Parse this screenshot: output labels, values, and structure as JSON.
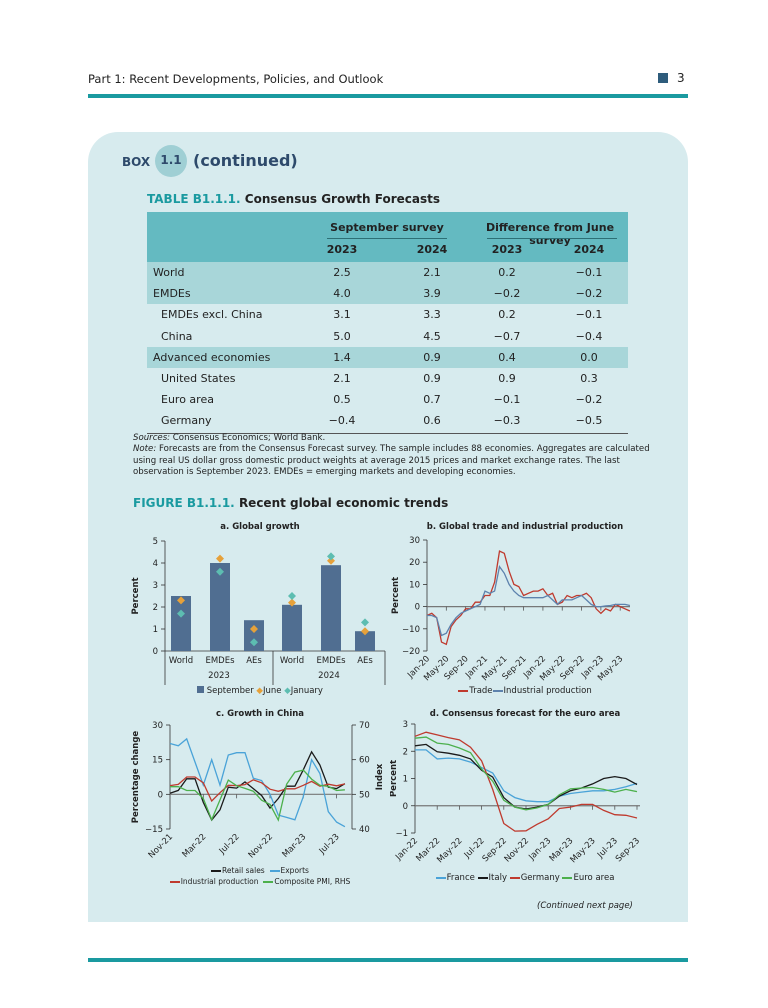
{
  "running_head": "Part 1: Recent Developments, Policies, and Outlook",
  "page_number": "3",
  "box": {
    "label": "BOX",
    "number": "1.1",
    "continued": "(continued)"
  },
  "table": {
    "id": "TABLE B1.1.1.",
    "title": "Consensus Growth Forecasts",
    "group_headers": [
      "September survey",
      "Difference from June survey"
    ],
    "years": [
      "2023",
      "2024",
      "2023",
      "2024"
    ],
    "rows": [
      {
        "label": "World",
        "values": [
          "2.5",
          "2.1",
          "0.2",
          "−0.1"
        ],
        "shaded": true,
        "indent": false
      },
      {
        "label": "EMDEs",
        "values": [
          "4.0",
          "3.9",
          "−0.2",
          "−0.2"
        ],
        "shaded": true,
        "indent": false
      },
      {
        "label": "EMDEs excl. China",
        "values": [
          "3.1",
          "3.3",
          "0.2",
          "−0.1"
        ],
        "shaded": false,
        "indent": true
      },
      {
        "label": "China",
        "values": [
          "5.0",
          "4.5",
          "−0.7",
          "−0.4"
        ],
        "shaded": false,
        "indent": true
      },
      {
        "label": "Advanced economies",
        "values": [
          "1.4",
          "0.9",
          "0.4",
          "0.0"
        ],
        "shaded": true,
        "indent": false
      },
      {
        "label": "United States",
        "values": [
          "2.1",
          "0.9",
          "0.9",
          "0.3"
        ],
        "shaded": false,
        "indent": true
      },
      {
        "label": "Euro area",
        "values": [
          "0.5",
          "0.7",
          "−0.1",
          "−0.2"
        ],
        "shaded": false,
        "indent": true
      },
      {
        "label": "Germany",
        "values": [
          "−0.4",
          "0.6",
          "−0.3",
          "−0.5"
        ],
        "shaded": false,
        "indent": true
      }
    ],
    "sources_label": "Sources:",
    "sources": " Consensus Economics; World Bank.",
    "note_label": "Note:",
    "note": " Forecasts are from the Consensus Forecast survey. The sample includes 88 economies. Aggregates are calculated using real US dollar gross domestic product weights at average 2015 prices and market exchange rates. The last observation is September 2023. EMDEs = emerging markets and developing economies."
  },
  "figure": {
    "id": "FIGURE B1.1.1.",
    "title": "Recent global economic trends"
  },
  "continued_next": "(Continued next page)",
  "colors": {
    "teal": "#1a9aa0",
    "bar": "#506e91",
    "june": "#e6a13a",
    "january": "#5dbdb1",
    "red": "#bf3a2e",
    "blue": "#5d82ad",
    "lightblue": "#4aa3d8",
    "black": "#1a1a1a",
    "green": "#4cb04c"
  },
  "chart_data": [
    {
      "type": "bar",
      "title": "a. Global growth",
      "ylabel": "Percent",
      "ylim": [
        0,
        5
      ],
      "yticks": [
        0,
        1,
        2,
        3,
        4,
        5
      ],
      "categories": [
        "World",
        "EMDEs",
        "AEs",
        "World",
        "EMDEs",
        "AEs"
      ],
      "groups": [
        "2023",
        "2024"
      ],
      "series": [
        {
          "name": "September",
          "kind": "bar",
          "values": [
            2.5,
            4.0,
            1.4,
            2.1,
            3.9,
            0.9
          ]
        },
        {
          "name": "June",
          "kind": "diamond",
          "values": [
            2.3,
            4.2,
            1.0,
            2.2,
            4.1,
            0.9
          ]
        },
        {
          "name": "January",
          "kind": "diamond",
          "values": [
            1.7,
            3.6,
            0.4,
            2.5,
            4.3,
            1.3
          ]
        }
      ],
      "legend": "bottom"
    },
    {
      "type": "line",
      "title": "b. Global trade and industrial production",
      "ylabel": "Percent",
      "ylim": [
        -20,
        30
      ],
      "yticks": [
        -20,
        -10,
        0,
        10,
        20,
        30
      ],
      "x_start": "Jan-20",
      "x_frequency": "monthly",
      "xticks": [
        "Jan-20",
        "May-20",
        "Sep-20",
        "Jan-21",
        "May-21",
        "Sep-21",
        "Jan-22",
        "May-22",
        "Sep-22",
        "Jan-23",
        "May-23"
      ],
      "series": [
        {
          "name": "Trade",
          "values": [
            -4,
            -3,
            -5,
            -16,
            -17,
            -9,
            -6,
            -4,
            -1,
            -1,
            2,
            2,
            5,
            5,
            11,
            25,
            24,
            16,
            10,
            9,
            5,
            6,
            7,
            7,
            8,
            5,
            6,
            1,
            2,
            5,
            4,
            5,
            5,
            6,
            4,
            -1,
            -3,
            -1,
            -2,
            1,
            0,
            -1,
            -2
          ]
        },
        {
          "name": "Industrial production",
          "values": [
            -4,
            -4,
            -5,
            -13,
            -12,
            -8,
            -5,
            -3,
            -2,
            -1,
            0,
            1,
            7,
            6,
            7,
            18,
            15,
            10,
            7,
            5,
            4,
            4,
            4,
            4,
            4,
            5,
            3,
            1,
            3,
            3,
            3,
            4,
            5,
            3,
            1,
            0,
            0,
            0.3,
            0.5,
            1,
            1,
            1,
            0.5
          ]
        }
      ],
      "legend": "bottom"
    },
    {
      "type": "line",
      "title": "c. Growth in China",
      "ylabel": "Percentage change",
      "y2label": "Index",
      "ylim": [
        -15,
        30
      ],
      "yticks": [
        -15,
        0,
        15,
        30
      ],
      "y2lim": [
        40,
        70
      ],
      "y2ticks": [
        40,
        50,
        60,
        70
      ],
      "x_start": "Nov-21",
      "x_frequency": "monthly",
      "xticks": [
        "Nov-21",
        "Mar-22",
        "Jul-22",
        "Nov-22",
        "Mar-23",
        "Jul-23"
      ],
      "series": [
        {
          "name": "Retail sales",
          "values": [
            0.5,
            1.7,
            6.7,
            6.7,
            -3.5,
            -11.1,
            -6.7,
            3.1,
            2.7,
            5.4,
            2.5,
            -0.5,
            -5.9,
            -1.8,
            3.5,
            3.5,
            10.6,
            18.4,
            12.7,
            3.1,
            2.5,
            4.6
          ]
        },
        {
          "name": "Exports",
          "values": [
            22,
            21,
            24,
            14,
            4,
            15,
            4,
            17,
            18,
            18,
            7,
            6,
            0,
            -9,
            -10,
            -11,
            -1,
            15,
            9,
            -7.5,
            -12,
            -14
          ]
        },
        {
          "name": "Industrial production",
          "values": [
            3.8,
            4.3,
            7.5,
            7.5,
            5,
            -2.9,
            0.7,
            3.9,
            3.8,
            4.2,
            6.3,
            5,
            2.2,
            1.3,
            2.4,
            2.4,
            3.9,
            5.6,
            3.5,
            4.4,
            3.7,
            4.5
          ]
        },
        {
          "name": "Composite PMI, RHS",
          "axis": "right",
          "values": [
            52.2,
            52.2,
            51.1,
            51.1,
            48.8,
            42.7,
            48.4,
            54.1,
            52.5,
            51.7,
            50.9,
            48.3,
            47.1,
            42.6,
            52.9,
            56.4,
            57,
            54.4,
            52.6,
            52.3,
            51.1,
            51.3
          ]
        }
      ],
      "legend": "bottom"
    },
    {
      "type": "line",
      "title": "d. Consensus forecast for the euro area",
      "ylabel": "Percent",
      "ylim": [
        -1,
        3
      ],
      "yticks": [
        -1,
        0,
        1,
        2,
        3
      ],
      "x_start": "Jan-22",
      "x_frequency": "monthly",
      "xticks": [
        "Jan-22",
        "Mar-22",
        "May-22",
        "Jul-22",
        "Sep-22",
        "Nov-22",
        "Jan-23",
        "Mar-23",
        "May-23",
        "Jul-23",
        "Sep-23"
      ],
      "series": [
        {
          "name": "France",
          "values": [
            2.05,
            2.05,
            1.72,
            1.75,
            1.72,
            1.6,
            1.4,
            1.2,
            0.55,
            0.3,
            0.18,
            0.15,
            0.15,
            0.35,
            0.45,
            0.5,
            0.55,
            0.55,
            0.6,
            0.7,
            0.82
          ]
        },
        {
          "name": "Italy",
          "values": [
            2.2,
            2.25,
            1.98,
            1.93,
            1.85,
            1.72,
            1.3,
            1.05,
            0.3,
            -0.05,
            -0.12,
            -0.05,
            0.05,
            0.35,
            0.55,
            0.65,
            0.8,
            1.0,
            1.07,
            1.0,
            0.78
          ]
        },
        {
          "name": "Germany",
          "values": [
            2.55,
            2.7,
            2.6,
            2.5,
            2.42,
            2.15,
            1.65,
            0.6,
            -0.65,
            -0.93,
            -0.92,
            -0.68,
            -0.48,
            -0.1,
            -0.05,
            0.05,
            0.05,
            -0.17,
            -0.33,
            -0.35,
            -0.45
          ]
        },
        {
          "name": "Euro area",
          "values": [
            2.48,
            2.52,
            2.3,
            2.25,
            2.12,
            1.95,
            1.35,
            0.9,
            0.2,
            -0.05,
            -0.15,
            -0.08,
            0.05,
            0.4,
            0.62,
            0.65,
            0.67,
            0.6,
            0.5,
            0.6,
            0.52
          ]
        }
      ],
      "legend": "bottom"
    }
  ]
}
